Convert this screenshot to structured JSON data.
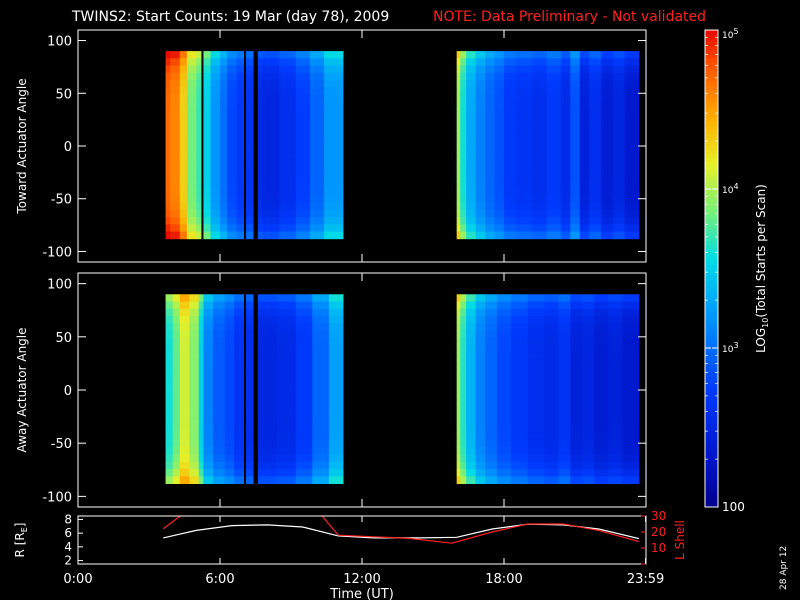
{
  "header": {
    "title": "TWINS2: Start Counts: 19 Mar (day  78), 2009",
    "note": "NOTE: Data Preliminary - Not validated"
  },
  "footer": {
    "date_stamp": "28 Apr 12"
  },
  "colors": {
    "background": "#000000",
    "axes": "#ffffff",
    "note": "#ff2020",
    "lshell": "#ff2020",
    "radius": "#ffffff"
  },
  "chart_data": [
    {
      "type": "heatmap",
      "panel": "toward",
      "ylabel": "Toward Actuator Angle",
      "xlim": [
        0,
        24
      ],
      "ylim": [
        -110,
        110
      ],
      "yticks": [
        -100,
        -50,
        0,
        50,
        100
      ],
      "ytick_labels": [
        "-100",
        "-50",
        "0",
        "50",
        "100"
      ],
      "data_y_range": [
        -88,
        90
      ],
      "blocks": [
        {
          "x_range": [
            3.7,
            11.2
          ],
          "columns": [
            {
              "x": [
                3.7,
                3.9
              ],
              "log": 4.7
            },
            {
              "x": [
                3.9,
                4.3
              ],
              "log": 4.6
            },
            {
              "x": [
                4.3,
                4.6
              ],
              "log": 4.3
            },
            {
              "x": [
                4.6,
                5.0
              ],
              "log": 3.85
            },
            {
              "x": [
                5.0,
                5.2
              ],
              "log": 3.7
            },
            {
              "x": [
                5.2,
                5.3
              ],
              "log": null
            },
            {
              "x": [
                5.3,
                5.6
              ],
              "log": 3.5
            },
            {
              "x": [
                5.6,
                6.0
              ],
              "log": 3.2
            },
            {
              "x": [
                6.0,
                6.3
              ],
              "log": 3.0
            },
            {
              "x": [
                6.3,
                6.7
              ],
              "log": 2.8
            },
            {
              "x": [
                6.7,
                7.0
              ],
              "log": 2.7
            },
            {
              "x": [
                7.0,
                7.1
              ],
              "log": null
            },
            {
              "x": [
                7.1,
                7.4
              ],
              "log": 2.65
            },
            {
              "x": [
                7.4,
                7.6
              ],
              "log": null
            },
            {
              "x": [
                7.6,
                7.8
              ],
              "log": 2.55
            },
            {
              "x": [
                7.8,
                8.5
              ],
              "log": 2.5
            },
            {
              "x": [
                8.5,
                9.2
              ],
              "log": 2.6
            },
            {
              "x": [
                9.2,
                9.8
              ],
              "log": 2.75
            },
            {
              "x": [
                9.8,
                10.4
              ],
              "log": 2.95
            },
            {
              "x": [
                10.4,
                11.2
              ],
              "log": 3.2
            }
          ]
        },
        {
          "x_range": [
            16.0,
            23.7
          ],
          "columns": [
            {
              "x": [
                16.0,
                16.15
              ],
              "log": 3.95
            },
            {
              "x": [
                16.15,
                16.4
              ],
              "log": 3.6
            },
            {
              "x": [
                16.4,
                16.8
              ],
              "log": 3.3
            },
            {
              "x": [
                16.8,
                17.2
              ],
              "log": 3.1
            },
            {
              "x": [
                17.2,
                17.6
              ],
              "log": 2.95
            },
            {
              "x": [
                17.6,
                18.0
              ],
              "log": 2.85
            },
            {
              "x": [
                18.0,
                18.5
              ],
              "log": 2.7
            },
            {
              "x": [
                18.5,
                19.2
              ],
              "log": 2.65
            },
            {
              "x": [
                19.2,
                19.8
              ],
              "log": 2.6
            },
            {
              "x": [
                19.8,
                20.4
              ],
              "log": 2.7
            },
            {
              "x": [
                20.4,
                20.8
              ],
              "log": 2.55
            },
            {
              "x": [
                20.8,
                21.2
              ],
              "log": 2.85
            },
            {
              "x": [
                21.2,
                21.6
              ],
              "log": 2.45
            },
            {
              "x": [
                21.6,
                22.1
              ],
              "log": 2.6
            },
            {
              "x": [
                22.1,
                22.6
              ],
              "log": 2.4
            },
            {
              "x": [
                22.6,
                23.1
              ],
              "log": 2.5
            },
            {
              "x": [
                23.1,
                23.7
              ],
              "log": 2.35
            }
          ]
        }
      ]
    },
    {
      "type": "heatmap",
      "panel": "away",
      "ylabel": "Away Actuator Angle",
      "xlim": [
        0,
        24
      ],
      "ylim": [
        -110,
        110
      ],
      "yticks": [
        -100,
        -50,
        0,
        50,
        100
      ],
      "ytick_labels": [
        "-100",
        "-50",
        "0",
        "50",
        "100"
      ],
      "data_y_range": [
        -88,
        90
      ],
      "blocks": [
        {
          "x_range": [
            3.7,
            11.2
          ],
          "columns": [
            {
              "x": [
                3.7,
                4.0
              ],
              "log": 3.6
            },
            {
              "x": [
                4.0,
                4.3
              ],
              "log": 3.8
            },
            {
              "x": [
                4.3,
                4.7
              ],
              "log": 4.1
            },
            {
              "x": [
                4.7,
                5.1
              ],
              "log": 3.9
            },
            {
              "x": [
                5.1,
                5.3
              ],
              "log": 3.5
            },
            {
              "x": [
                5.3,
                5.7
              ],
              "log": 3.1
            },
            {
              "x": [
                5.7,
                6.2
              ],
              "log": 2.9
            },
            {
              "x": [
                6.2,
                6.6
              ],
              "log": 2.8
            },
            {
              "x": [
                6.6,
                7.0
              ],
              "log": 2.65
            },
            {
              "x": [
                7.0,
                7.1
              ],
              "log": null
            },
            {
              "x": [
                7.1,
                7.4
              ],
              "log": 2.6
            },
            {
              "x": [
                7.4,
                7.6
              ],
              "log": null
            },
            {
              "x": [
                7.6,
                8.4
              ],
              "log": 2.5
            },
            {
              "x": [
                8.4,
                9.2
              ],
              "log": 2.55
            },
            {
              "x": [
                9.2,
                9.9
              ],
              "log": 2.7
            },
            {
              "x": [
                9.9,
                10.6
              ],
              "log": 2.95
            },
            {
              "x": [
                10.6,
                11.2
              ],
              "log": 3.25
            }
          ]
        },
        {
          "x_range": [
            16.0,
            23.7
          ],
          "columns": [
            {
              "x": [
                16.0,
                16.15
              ],
              "log": 3.95
            },
            {
              "x": [
                16.15,
                16.4
              ],
              "log": 3.65
            },
            {
              "x": [
                16.4,
                16.8
              ],
              "log": 3.35
            },
            {
              "x": [
                16.8,
                17.2
              ],
              "log": 3.1
            },
            {
              "x": [
                17.2,
                17.7
              ],
              "log": 2.95
            },
            {
              "x": [
                17.7,
                18.3
              ],
              "log": 2.8
            },
            {
              "x": [
                18.3,
                19.0
              ],
              "log": 2.7
            },
            {
              "x": [
                19.0,
                19.7
              ],
              "log": 2.6
            },
            {
              "x": [
                19.7,
                20.3
              ],
              "log": 2.55
            },
            {
              "x": [
                20.3,
                20.8
              ],
              "log": 2.65
            },
            {
              "x": [
                20.8,
                21.3
              ],
              "log": 2.45
            },
            {
              "x": [
                21.3,
                21.8
              ],
              "log": 2.5
            },
            {
              "x": [
                21.8,
                22.4
              ],
              "log": 2.4
            },
            {
              "x": [
                22.4,
                23.0
              ],
              "log": 2.45
            },
            {
              "x": [
                23.0,
                23.7
              ],
              "log": 2.35
            }
          ]
        }
      ]
    },
    {
      "type": "line",
      "panel": "orbit",
      "ylabel": "R [R",
      "ylabel_sub": "E",
      "ylabel_close": "]",
      "y2label": "L Shell",
      "xlim": [
        0,
        24
      ],
      "xticks": [
        0,
        6,
        12,
        18,
        23.983
      ],
      "xtick_labels": [
        "0:00",
        "6:00",
        "12:00",
        "18:00",
        "23:59"
      ],
      "xlabel": "Time (UT)",
      "ylim": [
        1.5,
        8.5
      ],
      "yticks": [
        2,
        4,
        6,
        8
      ],
      "ytick_labels": [
        "2",
        "4",
        "6",
        "8"
      ],
      "y2lim": [
        0,
        30
      ],
      "y2ticks": [
        0,
        10,
        20,
        30
      ],
      "y2tick_labels": [
        "10",
        "20",
        "30"
      ],
      "y2tick_values": [
        10,
        20,
        30
      ],
      "series": [
        {
          "axis": "left",
          "x": [
            3.6,
            5.0,
            6.5,
            8.0,
            9.5,
            11.0,
            12.5,
            14.5,
            16.0,
            17.5,
            19.0,
            20.5,
            22.0,
            23.7
          ],
          "y": [
            5.3,
            6.4,
            7.1,
            7.2,
            6.9,
            5.6,
            5.3,
            5.3,
            5.4,
            6.6,
            7.3,
            7.2,
            6.6,
            5.2
          ]
        },
        {
          "axis": "right",
          "x": [
            3.6,
            4.5,
            10.2,
            11.0,
            12.5,
            14.0,
            15.8,
            17.5,
            19.0,
            20.5,
            22.0,
            23.7
          ],
          "y": [
            22,
            32,
            32,
            18,
            17,
            16,
            13,
            20,
            25,
            25,
            21,
            14
          ]
        }
      ]
    }
  ],
  "colorbar": {
    "label_pre": "LOG",
    "label_sub": "10",
    "label_post": "(Total Starts per Scan)",
    "range_log": [
      2,
      5
    ],
    "ticks": [
      {
        "log": 2,
        "base": "100",
        "exp": ""
      },
      {
        "log": 3,
        "base": "10",
        "exp": "3"
      },
      {
        "log": 4,
        "base": "10",
        "exp": "4"
      },
      {
        "log": 5,
        "base": "10",
        "exp": "5"
      }
    ]
  }
}
